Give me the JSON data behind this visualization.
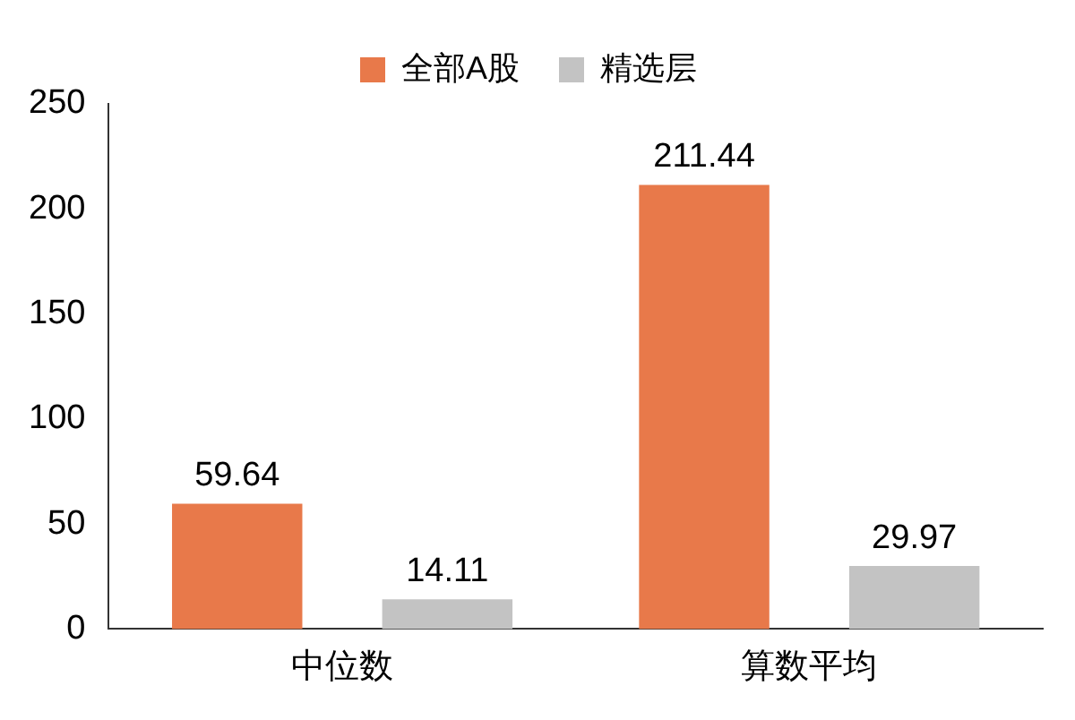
{
  "chart_data": {
    "type": "bar",
    "categories": [
      "中位数",
      "算数平均"
    ],
    "series": [
      {
        "name": "全部A股",
        "color": "#e8794a",
        "values": [
          59.64,
          211.44
        ]
      },
      {
        "name": "精选层",
        "color": "#c3c3c3",
        "values": [
          14.11,
          29.97
        ]
      }
    ],
    "ylim": [
      0,
      250
    ],
    "yticks": [
      0,
      50,
      100,
      150,
      200,
      250
    ],
    "grid": false,
    "legend": "top",
    "data_labels": true
  }
}
